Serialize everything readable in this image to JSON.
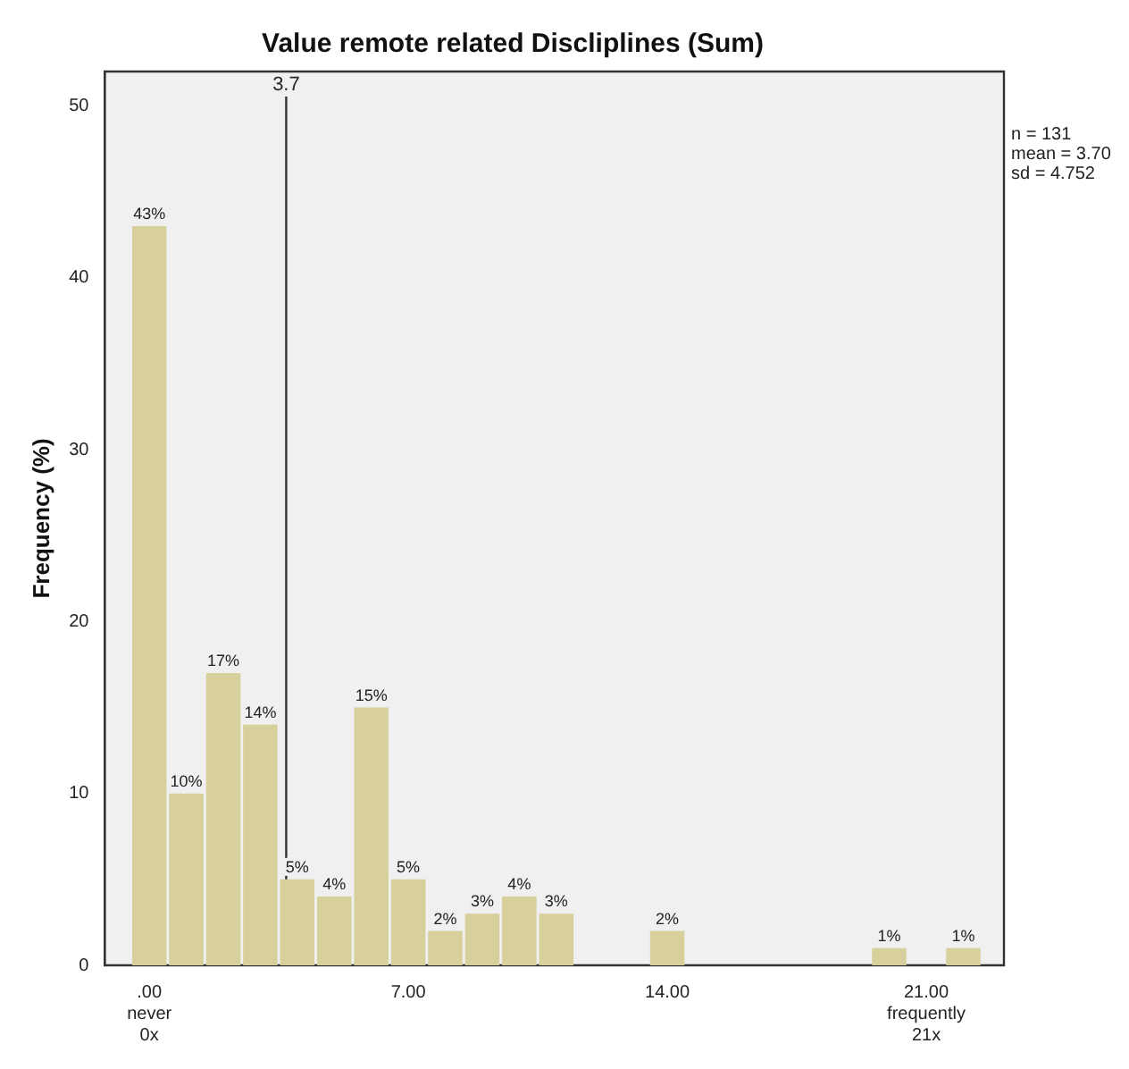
{
  "chart_data": {
    "type": "histogram",
    "title": "Value remote related Discliplines (Sum)",
    "ylabel": "Frequency (%)",
    "bins": [
      -0.5,
      0.5,
      1.5,
      2.5,
      3.5,
      4.5,
      5.5,
      6.5,
      7.5,
      8.5,
      9.5,
      10.5,
      11.5,
      12.5,
      13.5,
      14.5,
      15.5,
      16.5,
      17.5,
      18.5,
      19.5,
      20.5,
      21.5,
      22.5
    ],
    "values": [
      43,
      10,
      17,
      14,
      5,
      4,
      15,
      5,
      2,
      3,
      4,
      3,
      0,
      0,
      2,
      0,
      0,
      0,
      0,
      0,
      1,
      0,
      1
    ],
    "value_labels": [
      "43%",
      "10%",
      "17%",
      "14%",
      "5%",
      "4%",
      "15%",
      "5%",
      "2%",
      "3%",
      "4%",
      "3%",
      null,
      null,
      "2%",
      null,
      null,
      null,
      null,
      null,
      "1%",
      null,
      "1%"
    ],
    "color": "#d8d09c",
    "xlim": [
      -1.2,
      23.1
    ],
    "xticks": [
      {
        "value": 0,
        "label": ".00\nnever\n0x"
      },
      {
        "value": 7,
        "label": "7.00"
      },
      {
        "value": 14,
        "label": "14.00"
      },
      {
        "value": 21,
        "label": "21.00\nfrequently\n21x"
      }
    ],
    "ylim": [
      0,
      52
    ],
    "yticks": [
      0,
      10,
      20,
      30,
      40,
      50
    ],
    "ref_lines": [
      {
        "axis": "x",
        "value": 3.7,
        "label": "3.7"
      }
    ],
    "annotations": [
      "n = 131",
      "mean = 3.70",
      "sd = 4.752"
    ],
    "grid": false,
    "legend": false
  }
}
